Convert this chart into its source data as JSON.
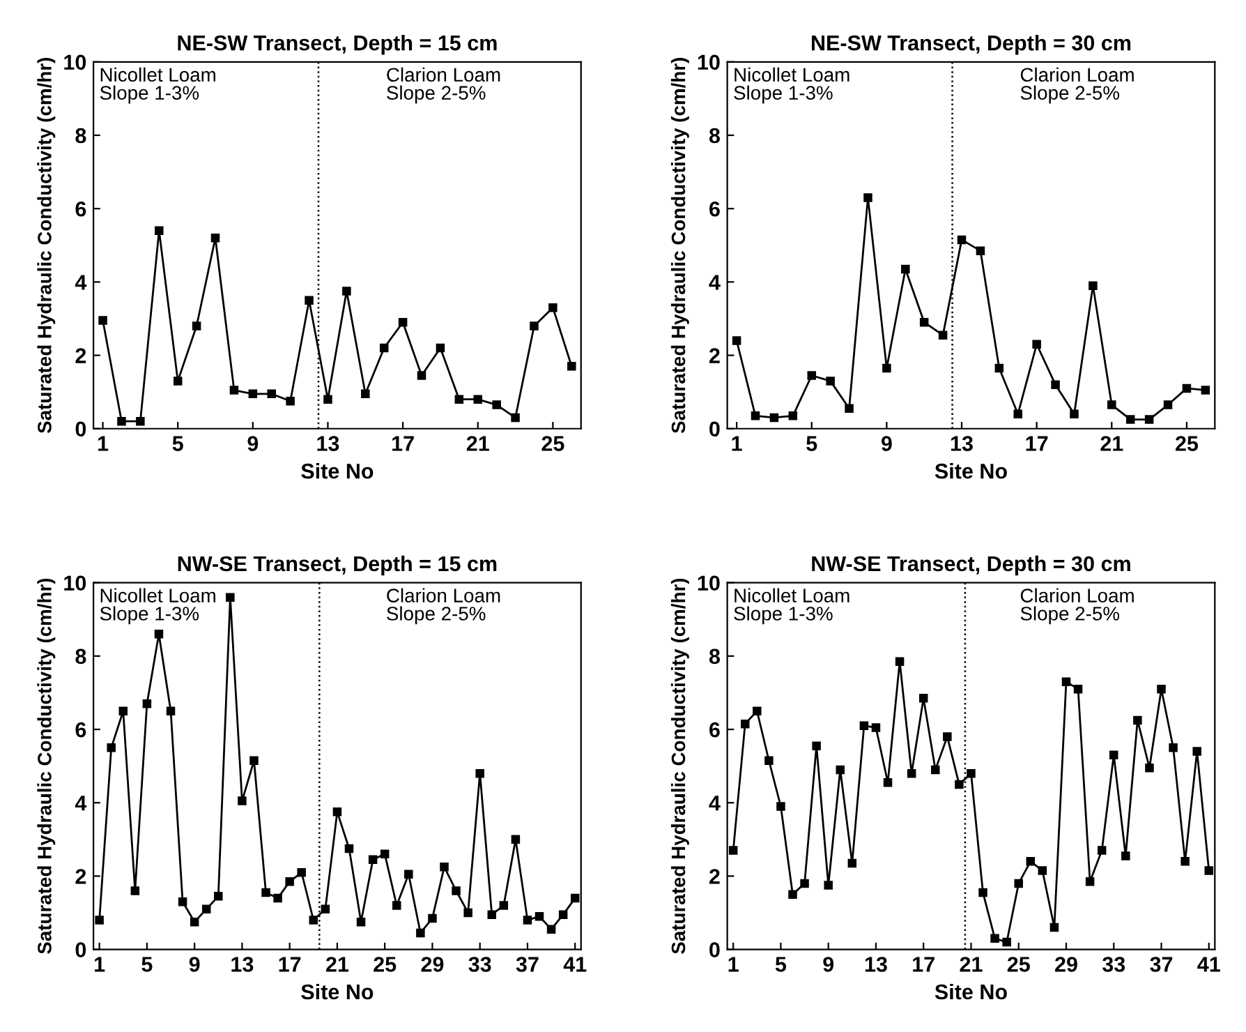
{
  "chart_data": [
    {
      "type": "line",
      "title": "NE-SW Transect, Depth = 15 cm",
      "xlabel": "Site No",
      "ylabel": "Saturated Hydraulic Conductivity (cm/hr)",
      "annotations": [
        "Nicollet Loam\nSlope 1-3%",
        "Clarion Loam\nSlope 2-5%"
      ],
      "x": [
        1,
        2,
        3,
        4,
        5,
        6,
        7,
        8,
        9,
        10,
        11,
        12,
        13,
        14,
        15,
        16,
        17,
        18,
        19,
        20,
        21,
        22,
        23,
        24,
        25,
        26
      ],
      "series": [
        {
          "color": "#000000",
          "values": [
            2.95,
            0.2,
            0.2,
            5.4,
            1.3,
            2.8,
            5.2,
            1.05,
            0.95,
            0.95,
            0.75,
            3.5,
            0.8,
            3.75,
            0.95,
            2.2,
            2.9,
            1.45,
            2.2,
            0.8,
            0.8,
            0.65,
            0.3,
            2.8,
            3.3,
            1.7
          ]
        }
      ],
      "xlim": [
        0.5,
        26.5
      ],
      "xticks": [
        1,
        5,
        9,
        13,
        17,
        21,
        25
      ],
      "ylim": [
        0,
        10
      ],
      "yticks": [
        0,
        2,
        4,
        6,
        8,
        10
      ],
      "ref_lines": [
        {
          "axis": "x",
          "value": 12.5,
          "color": "#000000",
          "line_style": "dotted"
        }
      ],
      "marker": "square",
      "line_style": "solid",
      "grid": false,
      "legend": false
    },
    {
      "type": "line",
      "title": "NE-SW Transect, Depth = 30 cm",
      "xlabel": "Site No",
      "ylabel": "Saturated Hydraulic Conductivity (cm/hr)",
      "annotations": [
        "Nicollet Loam\nSlope 1-3%",
        "Clarion Loam\nSlope 2-5%"
      ],
      "x": [
        1,
        2,
        3,
        4,
        5,
        6,
        7,
        8,
        9,
        10,
        11,
        12,
        13,
        14,
        15,
        16,
        17,
        18,
        19,
        20,
        21,
        22,
        23,
        24,
        25,
        26
      ],
      "series": [
        {
          "color": "#000000",
          "values": [
            2.4,
            0.35,
            0.3,
            0.35,
            1.45,
            1.3,
            0.55,
            6.3,
            1.65,
            4.35,
            2.9,
            2.55,
            5.15,
            4.85,
            1.65,
            0.4,
            2.3,
            1.2,
            0.4,
            3.9,
            0.65,
            0.25,
            0.25,
            0.65,
            1.1,
            1.05
          ]
        }
      ],
      "xlim": [
        0.5,
        26.5
      ],
      "xticks": [
        1,
        5,
        9,
        13,
        17,
        21,
        25
      ],
      "ylim": [
        0,
        10
      ],
      "yticks": [
        0,
        2,
        4,
        6,
        8,
        10
      ],
      "ref_lines": [
        {
          "axis": "x",
          "value": 12.5,
          "color": "#000000",
          "line_style": "dotted"
        }
      ],
      "marker": "square",
      "line_style": "solid",
      "grid": false,
      "legend": false
    },
    {
      "type": "line",
      "title": "NW-SE Transect, Depth = 15 cm",
      "xlabel": "Site No",
      "ylabel": "Saturated Hydraulic Conductivity (cm/hr)",
      "annotations": [
        "Nicollet Loam\nSlope 1-3%",
        "Clarion Loam\nSlope 2-5%"
      ],
      "x": [
        1,
        2,
        3,
        4,
        5,
        6,
        7,
        8,
        9,
        10,
        11,
        12,
        13,
        14,
        15,
        16,
        17,
        18,
        19,
        20,
        21,
        22,
        23,
        24,
        25,
        26,
        27,
        28,
        29,
        30,
        31,
        32,
        33,
        34,
        35,
        36,
        37,
        38,
        39,
        40,
        41
      ],
      "series": [
        {
          "color": "#000000",
          "values": [
            0.8,
            5.5,
            6.5,
            1.6,
            6.7,
            8.6,
            6.5,
            1.3,
            0.75,
            1.1,
            1.45,
            9.6,
            4.05,
            5.15,
            1.55,
            1.4,
            1.85,
            2.1,
            0.8,
            1.1,
            3.75,
            2.75,
            0.75,
            2.45,
            2.6,
            1.2,
            2.05,
            0.45,
            0.85,
            2.25,
            1.6,
            1.0,
            4.8,
            0.95,
            1.2,
            3.0,
            0.8,
            0.9,
            0.55,
            0.95,
            1.4
          ]
        }
      ],
      "xlim": [
        0.5,
        41.5
      ],
      "xticks": [
        1,
        5,
        9,
        13,
        17,
        21,
        25,
        29,
        33,
        37,
        41
      ],
      "ylim": [
        0,
        10
      ],
      "yticks": [
        0,
        2,
        4,
        6,
        8,
        10
      ],
      "ref_lines": [
        {
          "axis": "x",
          "value": 19.5,
          "color": "#000000",
          "line_style": "dotted"
        }
      ],
      "marker": "square",
      "line_style": "solid",
      "grid": false,
      "legend": false
    },
    {
      "type": "line",
      "title": "NW-SE Transect, Depth = 30 cm",
      "xlabel": "Site No",
      "ylabel": "Saturated Hydraulic Conductivity (cm/hr)",
      "annotations": [
        "Nicollet Loam\nSlope 1-3%",
        "Clarion Loam\nSlope 2-5%"
      ],
      "x": [
        1,
        2,
        3,
        4,
        5,
        6,
        7,
        8,
        9,
        10,
        11,
        12,
        13,
        14,
        15,
        16,
        17,
        18,
        19,
        20,
        21,
        22,
        23,
        24,
        25,
        26,
        27,
        28,
        29,
        30,
        31,
        32,
        33,
        34,
        35,
        36,
        37,
        38,
        39,
        40,
        41
      ],
      "series": [
        {
          "color": "#000000",
          "values": [
            2.7,
            6.15,
            6.5,
            5.15,
            3.9,
            1.5,
            1.8,
            5.55,
            1.75,
            4.9,
            2.35,
            6.1,
            6.05,
            4.55,
            7.85,
            4.8,
            6.85,
            4.9,
            5.8,
            4.5,
            4.8,
            1.55,
            0.3,
            0.2,
            1.8,
            2.4,
            2.15,
            0.6,
            7.3,
            7.1,
            1.85,
            2.7,
            5.3,
            2.55,
            6.25,
            4.95,
            7.1,
            5.5,
            2.4,
            5.4,
            2.15
          ]
        }
      ],
      "xlim": [
        0.5,
        41.5
      ],
      "xticks": [
        1,
        5,
        9,
        13,
        17,
        21,
        25,
        29,
        33,
        37,
        41
      ],
      "ylim": [
        0,
        10
      ],
      "yticks": [
        0,
        2,
        4,
        6,
        8,
        10
      ],
      "ref_lines": [
        {
          "axis": "x",
          "value": 20.5,
          "color": "#000000",
          "line_style": "dotted"
        }
      ],
      "marker": "square",
      "line_style": "solid",
      "grid": false,
      "legend": false
    }
  ]
}
